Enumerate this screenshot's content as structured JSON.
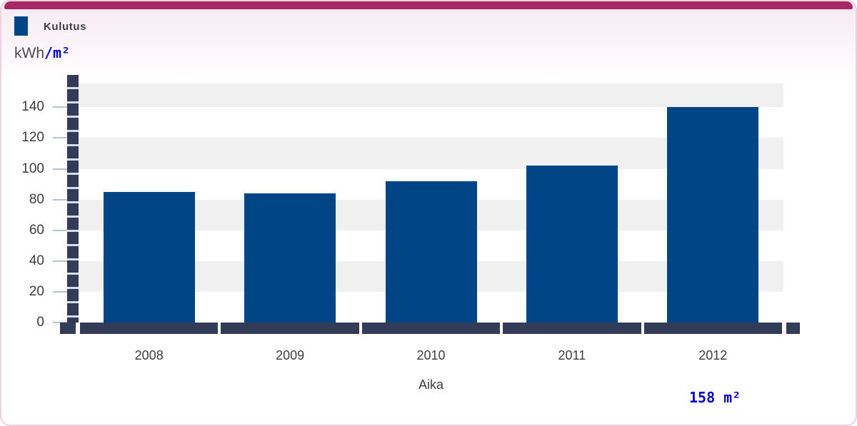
{
  "legend": {
    "label": "Kulutus",
    "swatch_color": "#004586"
  },
  "y_unit": {
    "prefix": "kWh",
    "suffix": "/m²"
  },
  "footer": {
    "area_label": "158 m²"
  },
  "colors": {
    "bar": "#004586",
    "axis": "#323b57",
    "accent": "#a42766",
    "panel_border": "#eed0e0",
    "band_gray": "#f0f0f0",
    "tick_line": "#b3c4d6",
    "text_gray": "#3d3d3d",
    "blue_text": "#0000cc"
  },
  "chart_data": {
    "type": "bar",
    "title": "",
    "series_name": "Kulutus",
    "categories": [
      "2008",
      "2009",
      "2010",
      "2011",
      "2012"
    ],
    "values": [
      85,
      84,
      92,
      102,
      140
    ],
    "xlabel": "Aika",
    "ylabel": "kWh/m²",
    "yticks": [
      0,
      20,
      40,
      60,
      80,
      100,
      120,
      140
    ],
    "ylim": [
      0,
      155
    ],
    "grid": "alternating horizontal bands every 20 units",
    "legend_position": "top-left",
    "bar_color": "#004586"
  }
}
